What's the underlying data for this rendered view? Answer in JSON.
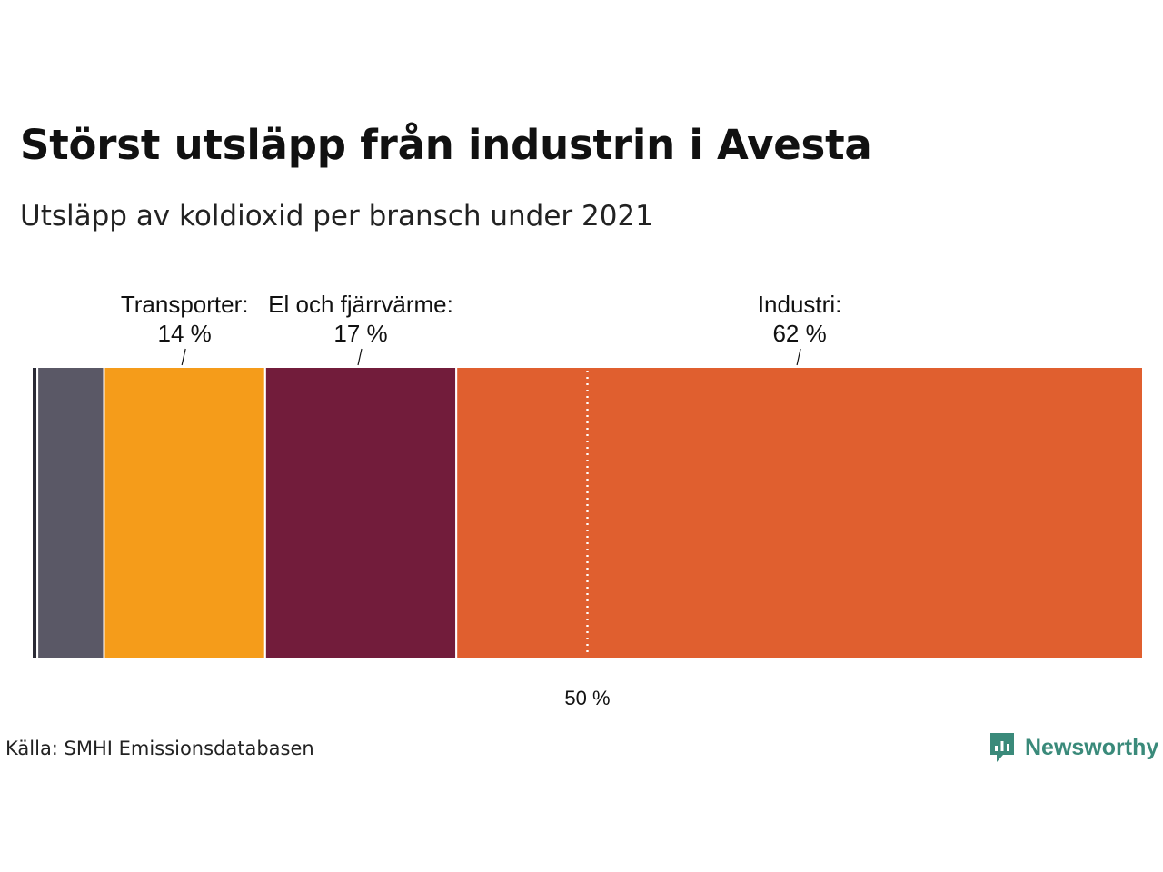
{
  "title": "Störst utsläpp från industrin i Avesta",
  "subtitle": "Utsläpp av koldioxid per bransch under 2021",
  "source": "Källa: SMHI Emissionsdatabasen",
  "brand": {
    "name": "Newsworthy",
    "color": "#3a8a7a",
    "icon": "newsworthy-logo-icon"
  },
  "chart_data": {
    "type": "bar",
    "orientation": "stacked-horizontal",
    "unit": "%",
    "xlim": [
      0,
      100
    ],
    "grid": false,
    "legend": "none",
    "series": [
      {
        "value": 0.5,
        "color": "#2a2a35",
        "label": "",
        "value_label": ""
      },
      {
        "value": 6,
        "color": "#5a5866",
        "label": "",
        "value_label": ""
      },
      {
        "value": 14.5,
        "color": "#f59c1a",
        "label": "Transporter:",
        "value_label": "14 %"
      },
      {
        "value": 17.2,
        "color": "#721c3b",
        "label": "El och fjärrvärme:",
        "value_label": "17 %"
      },
      {
        "value": 61.8,
        "color": "#e05f2f",
        "label": "Industri:",
        "value_label": "62 %"
      }
    ],
    "reference_line": {
      "value": 50,
      "label": "50 %",
      "style": "dotted"
    }
  }
}
